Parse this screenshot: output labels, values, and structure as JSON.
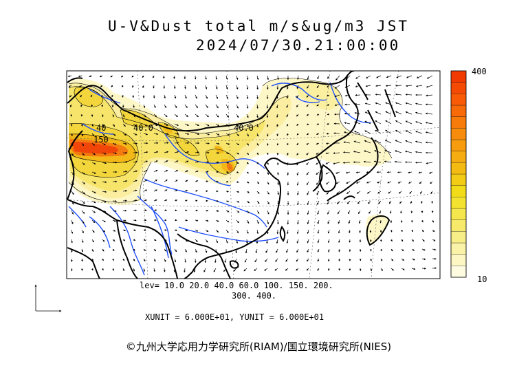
{
  "title": {
    "line1": "U-V&Dust total m/s&ug/m3 JST",
    "line2": "2024/07/30.21:00:00"
  },
  "legend": {
    "levels_line1": "lev= 10.0 20.0 40.0 60.0 100. 150. 200.",
    "levels_line2": "300. 400.",
    "colorbar_max": "400",
    "colorbar_min": "10",
    "colors": [
      "#fdfbe0",
      "#fcf7c3",
      "#faf2a6",
      "#f8ee88",
      "#f7ea6b",
      "#f5e64e",
      "#f4e230",
      "#f2dc1a",
      "#f3cc16",
      "#f4bc12",
      "#f5ac10",
      "#f69c0e",
      "#f78c0c",
      "#f77b0a",
      "#f86a08",
      "#f85a05",
      "#f54a03",
      "#f03a00"
    ]
  },
  "contour_labels": [
    "40",
    "40.0",
    "40.0",
    "150"
  ],
  "units": {
    "text": "XUNIT = 6.000E+01, YUNIT = 6.000E+01"
  },
  "credit": "©九州大学応用力学研究所(RIAM)/国立環境研究所(NIES)",
  "map_icons": [
    "wind-vector-icon",
    "axis-arrows-icon"
  ]
}
